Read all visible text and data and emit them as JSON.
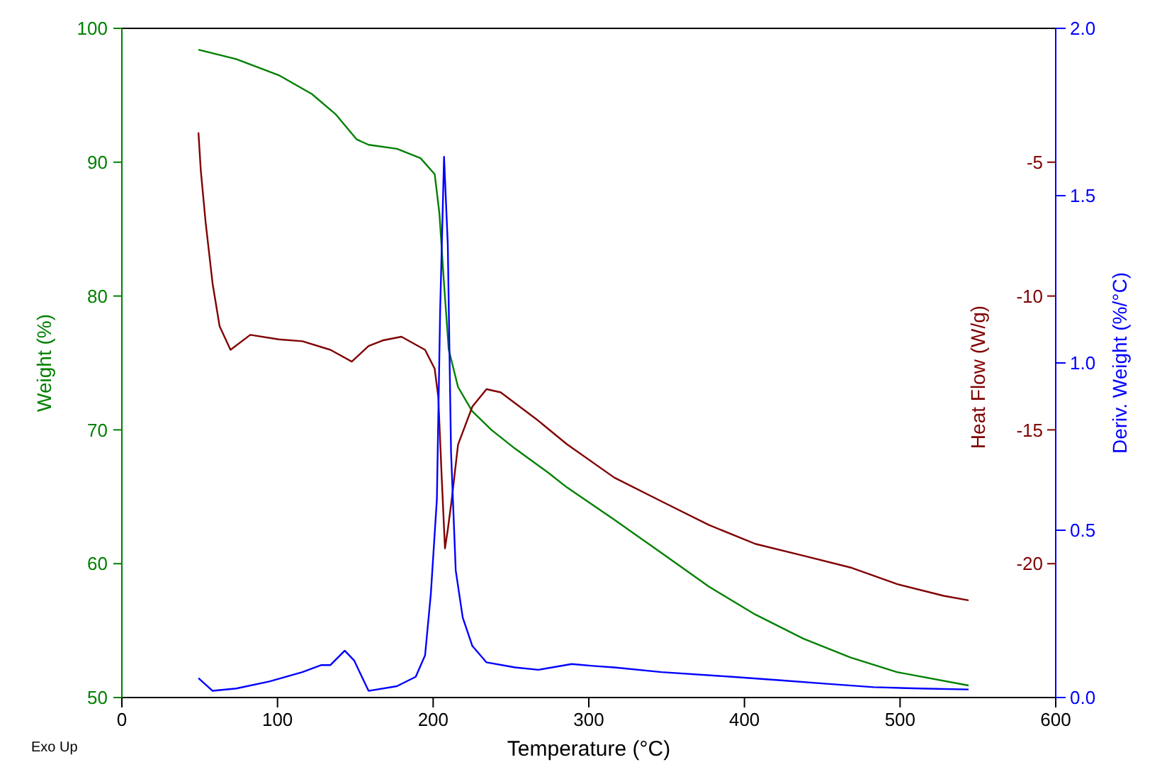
{
  "chart_data": {
    "type": "line",
    "xlabel": "Temperature (°C)",
    "ylabel": "Weight (%)",
    "y2label": "Heat Flow (W/g)",
    "y3label": "Deriv. Weight (%/°C)",
    "xlim": [
      0,
      600
    ],
    "xticks": [
      0,
      100,
      200,
      300,
      400,
      500,
      600
    ],
    "ylim": [
      50,
      100
    ],
    "yticks": [
      50,
      60,
      70,
      80,
      90,
      100
    ],
    "y2lim": [
      -25,
      0
    ],
    "y2ticks": [
      -5,
      -10,
      -15,
      -20
    ],
    "y3lim": [
      0,
      2
    ],
    "y3ticks": [
      {
        "value": 0,
        "label": "0.0"
      },
      {
        "value": 0.5,
        "label": "0.5"
      },
      {
        "value": 1,
        "label": "1.0"
      },
      {
        "value": 1.5,
        "label": "1.5"
      },
      {
        "value": 2,
        "label": "2.0"
      }
    ],
    "annotations": [
      "Exo Up"
    ],
    "series": [
      {
        "color": "#008000",
        "x": [
          49.2,
          73.5,
          100.8,
          122,
          137.2,
          150.9,
          158.5,
          176.7,
          191.9,
          201,
          204,
          207,
          210,
          216,
          225,
          237.4,
          252.6,
          273.9,
          286,
          316.3,
          346.7,
          377,
          407,
          437.8,
          468,
          498,
          544
        ],
        "values": [
          98.4,
          97.7,
          96.5,
          95.1,
          93.6,
          91.7,
          91.3,
          91.0,
          90.3,
          89.1,
          86.2,
          80.9,
          76.0,
          73.2,
          71.4,
          70.0,
          68.6,
          66.8,
          65.7,
          63.3,
          60.8,
          58.3,
          56.2,
          54.4,
          53.0,
          51.9,
          50.9
        ]
      },
      {
        "color": "#800000",
        "axis": "y2",
        "x": [
          49.2,
          50.7,
          53.8,
          58.3,
          62.8,
          69.8,
          82.5,
          100.8,
          116,
          134,
          147.7,
          158.5,
          167.5,
          179.6,
          194.8,
          201,
          203.3,
          205.5,
          207.6,
          209.4,
          211.8,
          216,
          225.2,
          234.3,
          243.4,
          267.6,
          286,
          316.3,
          346.7,
          377,
          407,
          437.8,
          468,
          498,
          528,
          544
        ],
        "values": [
          -3.89,
          -5.3,
          -7.24,
          -9.54,
          -11.13,
          -12.01,
          -11.45,
          -11.62,
          -11.69,
          -12.01,
          -12.45,
          -11.87,
          -11.66,
          -11.52,
          -12.01,
          -12.72,
          -13.78,
          -16.78,
          -19.43,
          -18.73,
          -17.67,
          -15.55,
          -14.13,
          -13.48,
          -13.6,
          -14.66,
          -15.54,
          -16.78,
          -17.67,
          -18.55,
          -19.26,
          -19.7,
          -20.14,
          -20.76,
          -21.2,
          -21.37
        ]
      },
      {
        "color": "#0000ff",
        "axis": "y3",
        "x": [
          49.2,
          58.3,
          73.5,
          94.7,
          116,
          128.2,
          134,
          143.2,
          149.2,
          158.5,
          176.7,
          188.8,
          194.8,
          198.5,
          202.4,
          204.5,
          207,
          209.4,
          211.5,
          214.5,
          219,
          225.2,
          234.3,
          252.6,
          267.6,
          289,
          304,
          316.3,
          346.7,
          392,
          422,
          453,
          483,
          513,
          544
        ],
        "values": [
          0.058,
          0.02,
          0.027,
          0.048,
          0.076,
          0.097,
          0.097,
          0.14,
          0.111,
          0.02,
          0.034,
          0.062,
          0.126,
          0.309,
          0.593,
          1.157,
          1.616,
          1.355,
          0.733,
          0.38,
          0.239,
          0.154,
          0.105,
          0.09,
          0.083,
          0.1,
          0.094,
          0.09,
          0.076,
          0.062,
          0.052,
          0.041,
          0.031,
          0.027,
          0.024
        ]
      }
    ]
  }
}
